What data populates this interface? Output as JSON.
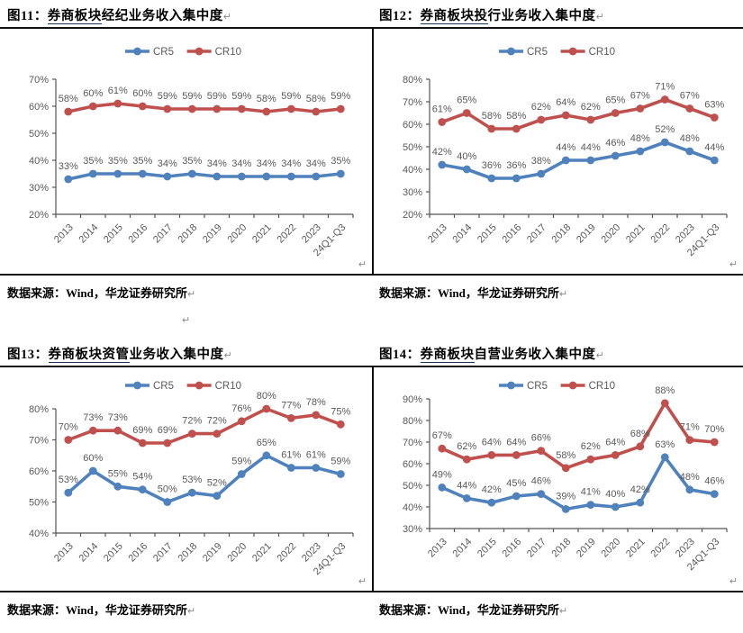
{
  "marks": {
    "return": "↵"
  },
  "colors": {
    "cr5": "#4F81BD",
    "cr10": "#C0504D",
    "label": "#595959",
    "axis": "#555555"
  },
  "figures": [
    {
      "number": "图11：",
      "underlined": "券商板块",
      "rest": "经纪业务收入集中度",
      "source": "数据来源：Wind，华龙证券研究所"
    },
    {
      "number": "图12：",
      "underlined": "券商板块投",
      "rest": "行业务收入集中度",
      "source": "数据来源：Wind，华龙证券研究所"
    },
    {
      "number": "图13：",
      "underlined": "券商板块资管",
      "rest": "业务收入集中度",
      "source": "数据来源：Wind，华龙证券研究所"
    },
    {
      "number": "图14：",
      "underlined": "券商板块",
      "rest": "自营业务收入集中度",
      "source": "数据来源：Wind，华龙证券研究所"
    }
  ],
  "chart_data": [
    {
      "type": "line",
      "title": "券商板块经纪业务收入集中度",
      "categories": [
        "2013",
        "2014",
        "2015",
        "2016",
        "2017",
        "2018",
        "2019",
        "2020",
        "2021",
        "2022",
        "2023",
        "24Q1-Q3"
      ],
      "series": [
        {
          "name": "CR5",
          "color": "#4F81BD",
          "values": [
            33,
            35,
            35,
            35,
            34,
            35,
            34,
            34,
            34,
            34,
            34,
            35
          ]
        },
        {
          "name": "CR10",
          "color": "#C0504D",
          "values": [
            58,
            60,
            61,
            60,
            59,
            59,
            59,
            59,
            58,
            59,
            58,
            59
          ]
        }
      ],
      "unit": "%",
      "ylim": [
        20,
        70
      ],
      "yticks": [
        20,
        30,
        40,
        50,
        60,
        70
      ],
      "legend_position": "top",
      "grid": false,
      "data_labels": true
    },
    {
      "type": "line",
      "title": "券商板块投行业务收入集中度",
      "categories": [
        "2013",
        "2014",
        "2015",
        "2016",
        "2017",
        "2018",
        "2019",
        "2020",
        "2021",
        "2022",
        "2023",
        "24Q1-Q3"
      ],
      "series": [
        {
          "name": "CR5",
          "color": "#4F81BD",
          "values": [
            42,
            40,
            36,
            36,
            38,
            44,
            44,
            46,
            48,
            52,
            48,
            44
          ]
        },
        {
          "name": "CR10",
          "color": "#C0504D",
          "values": [
            61,
            65,
            58,
            58,
            62,
            64,
            62,
            65,
            67,
            71,
            67,
            63
          ]
        }
      ],
      "unit": "%",
      "ylim": [
        20,
        80
      ],
      "yticks": [
        20,
        30,
        40,
        50,
        60,
        70,
        80
      ],
      "legend_position": "top",
      "grid": false,
      "data_labels": true
    },
    {
      "type": "line",
      "title": "券商板块资管业务收入集中度",
      "categories": [
        "2013",
        "2014",
        "2015",
        "2016",
        "2017",
        "2018",
        "2019",
        "2020",
        "2021",
        "2022",
        "2023",
        "24Q1-Q3"
      ],
      "series": [
        {
          "name": "CR5",
          "color": "#4F81BD",
          "values": [
            53,
            60,
            55,
            54,
            50,
            53,
            52,
            59,
            65,
            61,
            61,
            59
          ]
        },
        {
          "name": "CR10",
          "color": "#C0504D",
          "values": [
            70,
            73,
            73,
            69,
            69,
            72,
            72,
            76,
            80,
            77,
            78,
            75
          ]
        }
      ],
      "unit": "%",
      "ylim": [
        40,
        80
      ],
      "yticks": [
        40,
        50,
        60,
        70,
        80
      ],
      "legend_position": "top",
      "grid": false,
      "data_labels": true
    },
    {
      "type": "line",
      "title": "券商板块自营业务收入集中度",
      "categories": [
        "2013",
        "2014",
        "2015",
        "2016",
        "2017",
        "2018",
        "2019",
        "2020",
        "2021",
        "2022",
        "2023",
        "24Q1-Q3"
      ],
      "series": [
        {
          "name": "CR5",
          "color": "#4F81BD",
          "values": [
            49,
            44,
            42,
            45,
            46,
            39,
            41,
            40,
            42,
            63,
            48,
            46
          ]
        },
        {
          "name": "CR10",
          "color": "#C0504D",
          "values": [
            67,
            62,
            64,
            64,
            66,
            58,
            62,
            64,
            68,
            88,
            71,
            70
          ]
        }
      ],
      "unit": "%",
      "ylim": [
        30,
        90
      ],
      "yticks": [
        30,
        40,
        50,
        60,
        70,
        80,
        90
      ],
      "legend_position": "top",
      "grid": false,
      "data_labels": true
    }
  ]
}
